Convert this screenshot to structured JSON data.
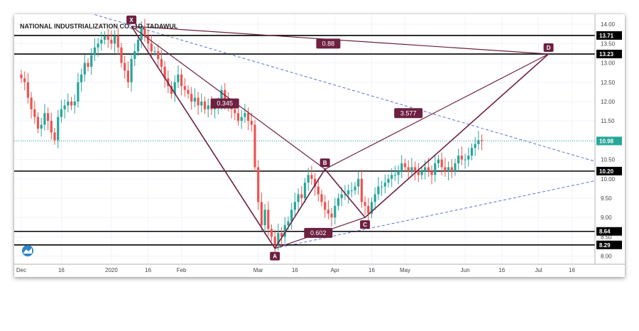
{
  "chart_data": {
    "type": "candlestick",
    "title": "NATIONAL INDUSTRIALIZATION CO., 1D, TADAWUL",
    "ylim": [
      7.9,
      14.15
    ],
    "y_ticks": [
      8.0,
      8.5,
      9.0,
      9.5,
      10.0,
      10.5,
      11.0,
      11.5,
      12.0,
      12.5,
      13.0,
      13.5,
      14.0
    ],
    "y_tick_labels": [
      "8.00",
      "8.50",
      "9.00",
      "9.50",
      "10.00",
      "10.50",
      "11.00",
      "11.50",
      "12.00",
      "12.50",
      "13.00",
      "13.50",
      "14.00"
    ],
    "x_ticks": [
      {
        "label": "Dec",
        "day": 0
      },
      {
        "label": "16",
        "day": 12
      },
      {
        "label": "2020",
        "day": 27
      },
      {
        "label": "16",
        "day": 38
      },
      {
        "label": "Feb",
        "day": 48
      },
      {
        "label": "Mar",
        "day": 71
      },
      {
        "label": "16",
        "day": 82
      },
      {
        "label": "Apr",
        "day": 94
      },
      {
        "label": "16",
        "day": 105
      },
      {
        "label": "May",
        "day": 115
      },
      {
        "label": "Jun",
        "day": 133
      },
      {
        "label": "16",
        "day": 144
      },
      {
        "label": "Jul",
        "day": 155
      },
      {
        "label": "16",
        "day": 165
      }
    ],
    "series_close": [
      12.6,
      12.5,
      12.1,
      11.8,
      11.6,
      11.3,
      11.4,
      11.7,
      11.5,
      11.2,
      11.0,
      11.6,
      11.8,
      11.9,
      12.0,
      11.9,
      12.0,
      12.5,
      12.7,
      13.0,
      12.9,
      13.2,
      13.4,
      13.5,
      13.6,
      13.7,
      13.6,
      13.5,
      13.7,
      13.4,
      13.0,
      12.8,
      12.5,
      13.1,
      13.3,
      13.6,
      13.9,
      13.7,
      13.5,
      13.3,
      13.3,
      13.1,
      12.9,
      12.6,
      12.4,
      12.2,
      12.5,
      12.7,
      12.4,
      12.3,
      12.2,
      12.0,
      12.1,
      11.9,
      12.0,
      11.8,
      11.9,
      11.8,
      11.85,
      11.9,
      12.3,
      12.0,
      11.9,
      11.8,
      11.7,
      11.5,
      11.6,
      11.7,
      11.5,
      11.4,
      10.3,
      9.4,
      8.8,
      9.2,
      8.7,
      8.5,
      8.3,
      8.6,
      8.5,
      8.8,
      8.9,
      9.2,
      9.4,
      9.6,
      9.5,
      9.9,
      10.1,
      10.0,
      9.8,
      9.6,
      9.4,
      9.2,
      9.1,
      9.0,
      9.3,
      9.5,
      9.6,
      9.6,
      9.7,
      9.7,
      9.8,
      10.0,
      9.4,
      9.3,
      9.1,
      9.4,
      9.6,
      9.8,
      9.8,
      9.9,
      10.0,
      10.1,
      10.1,
      10.2,
      10.4,
      10.3,
      10.2,
      10.3,
      10.2,
      10.1,
      10.2,
      10.3,
      10.2,
      10.1,
      10.4,
      10.5,
      10.3,
      10.2,
      10.3,
      10.2,
      10.4,
      10.6,
      10.5,
      10.5,
      10.6,
      10.8,
      10.9,
      11.0,
      10.98
    ],
    "levels": [
      {
        "value": 13.71,
        "label": "13.71"
      },
      {
        "value": 13.23,
        "label": "13.23"
      },
      {
        "value": 10.2,
        "label": "10.20"
      },
      {
        "value": 8.64,
        "label": "8.64"
      },
      {
        "value": 8.29,
        "label": "8.29"
      }
    ],
    "current_price": {
      "value": 10.98,
      "label": "10.98"
    },
    "pattern_points": [
      {
        "label": "X",
        "day": 33,
        "value": 13.95
      },
      {
        "label": "A",
        "day": 76,
        "value": 8.2
      },
      {
        "label": "B",
        "day": 91,
        "value": 10.25
      },
      {
        "label": "C",
        "day": 103,
        "value": 9.0
      },
      {
        "label": "D",
        "day": 158,
        "value": 13.23
      }
    ],
    "ratios": [
      {
        "label": "0.88",
        "day": 92,
        "value": 13.5
      },
      {
        "label": "0.345",
        "day": 61,
        "value": 11.95
      },
      {
        "label": "3.577",
        "day": 116,
        "value": 11.7
      },
      {
        "label": "0.602",
        "day": 89,
        "value": 8.6
      }
    ]
  }
}
